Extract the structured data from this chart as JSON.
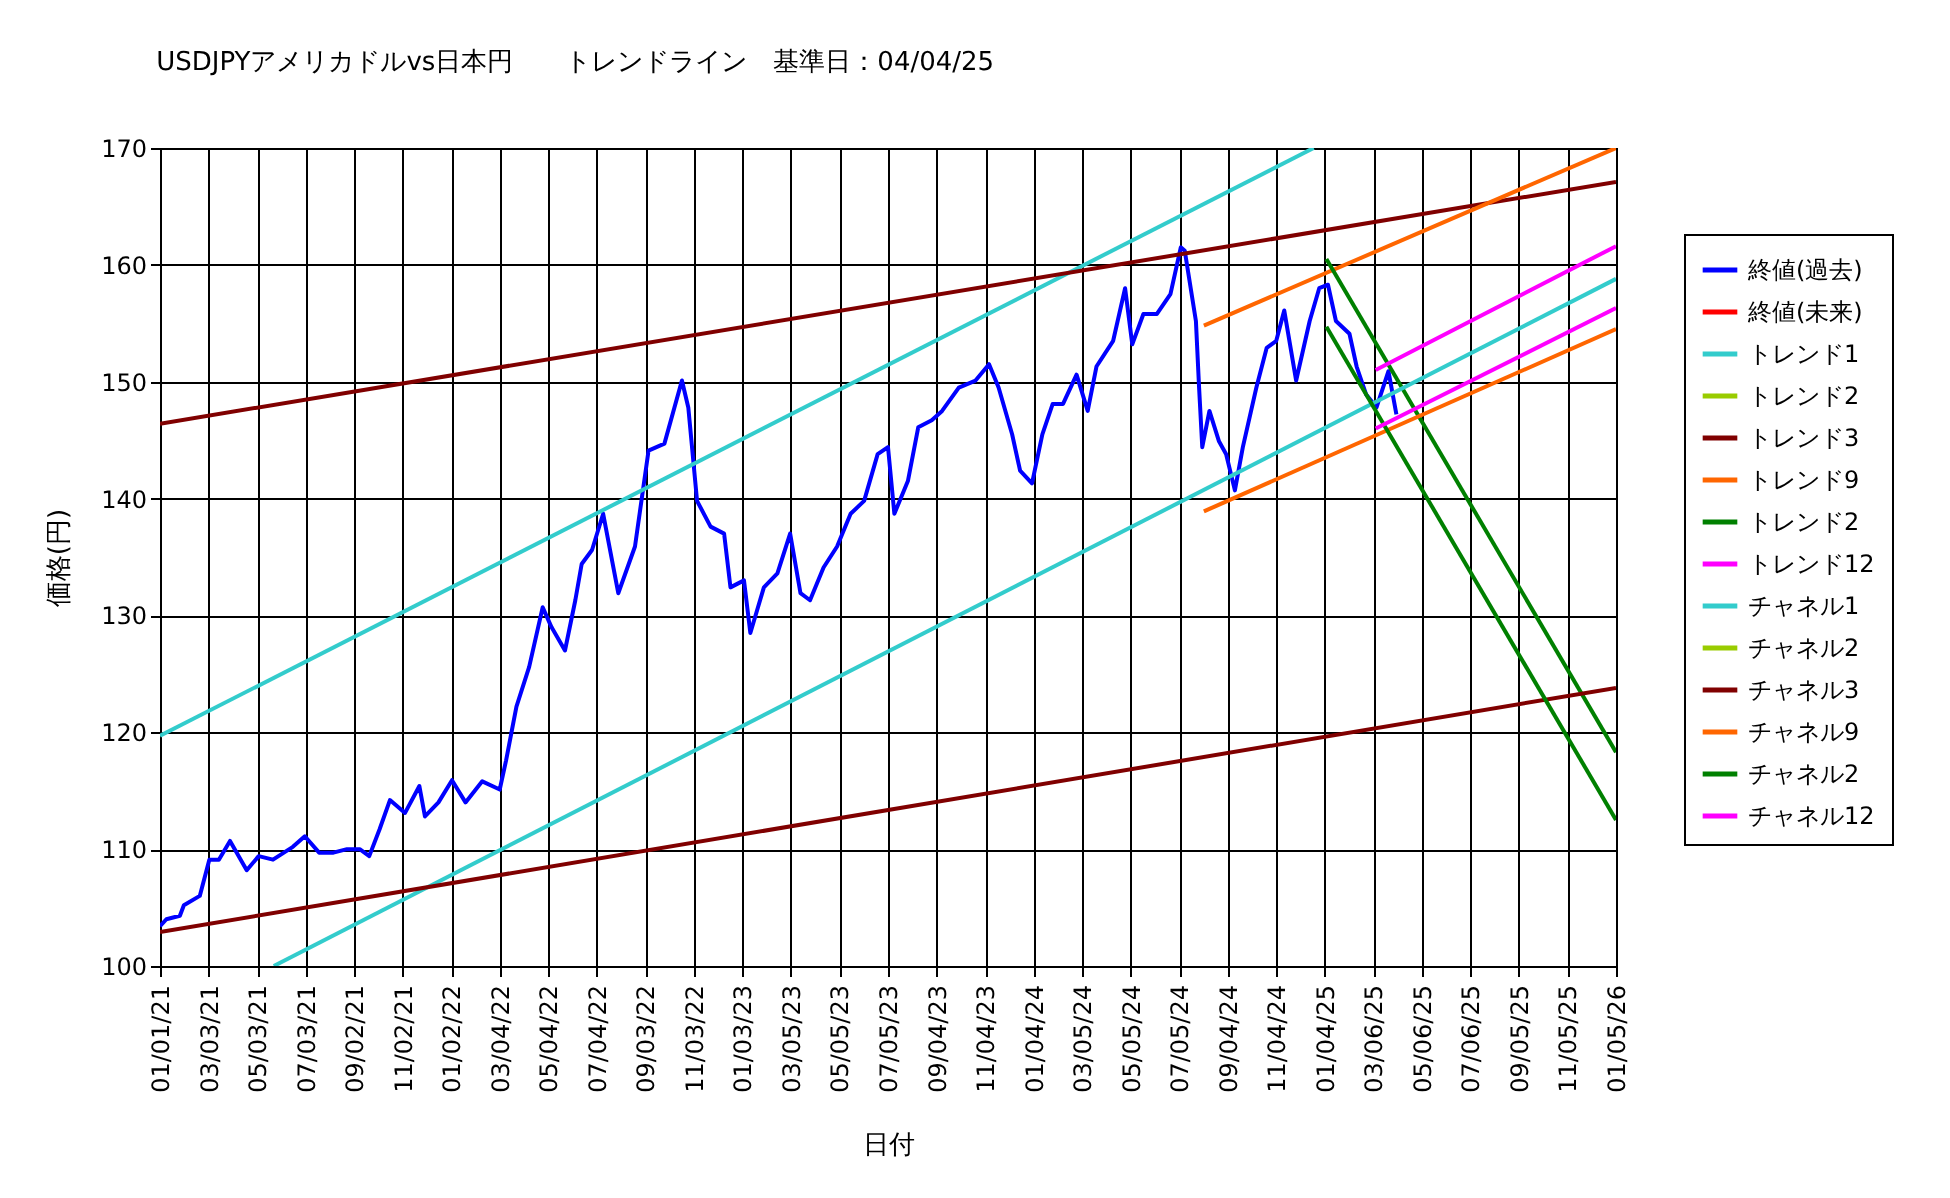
{
  "chart_data": {
    "type": "line",
    "title": "USDJPYアメリカドルvs日本円　　トレンドライン　基準日：04/04/25",
    "xlabel": "日付",
    "ylabel": "価格(円)",
    "xlim": [
      "2021-01-01",
      "2026-01-05"
    ],
    "ylim": [
      100,
      170
    ],
    "yticks": [
      100,
      110,
      120,
      130,
      140,
      150,
      160,
      170
    ],
    "xticks": [
      {
        "value": "2021-01-01",
        "label": "01/01/21"
      },
      {
        "value": "2021-03-03",
        "label": "03/03/21"
      },
      {
        "value": "2021-05-03",
        "label": "05/03/21"
      },
      {
        "value": "2021-07-03",
        "label": "07/03/21"
      },
      {
        "value": "2021-09-02",
        "label": "09/02/21"
      },
      {
        "value": "2021-11-02",
        "label": "11/02/21"
      },
      {
        "value": "2022-01-02",
        "label": "01/02/22"
      },
      {
        "value": "2022-03-04",
        "label": "03/04/22"
      },
      {
        "value": "2022-05-04",
        "label": "05/04/22"
      },
      {
        "value": "2022-07-04",
        "label": "07/04/22"
      },
      {
        "value": "2022-09-03",
        "label": "09/03/22"
      },
      {
        "value": "2022-11-03",
        "label": "11/03/22"
      },
      {
        "value": "2023-01-03",
        "label": "01/03/23"
      },
      {
        "value": "2023-03-05",
        "label": "03/05/23"
      },
      {
        "value": "2023-05-05",
        "label": "05/05/23"
      },
      {
        "value": "2023-07-05",
        "label": "07/05/23"
      },
      {
        "value": "2023-09-04",
        "label": "09/04/23"
      },
      {
        "value": "2023-11-04",
        "label": "11/04/23"
      },
      {
        "value": "2024-01-04",
        "label": "01/04/24"
      },
      {
        "value": "2024-03-05",
        "label": "03/05/24"
      },
      {
        "value": "2024-05-05",
        "label": "05/05/24"
      },
      {
        "value": "2024-07-05",
        "label": "07/05/24"
      },
      {
        "value": "2024-09-04",
        "label": "09/04/24"
      },
      {
        "value": "2024-11-04",
        "label": "11/04/24"
      },
      {
        "value": "2025-01-04",
        "label": "01/04/25"
      },
      {
        "value": "2025-03-06",
        "label": "03/06/25"
      },
      {
        "value": "2025-05-06",
        "label": "05/06/25"
      },
      {
        "value": "2025-07-06",
        "label": "07/06/25"
      },
      {
        "value": "2025-09-05",
        "label": "09/05/25"
      },
      {
        "value": "2025-11-05",
        "label": "11/05/25"
      },
      {
        "value": "2026-01-05",
        "label": "01/05/26"
      }
    ],
    "grid": true,
    "legend": "right",
    "series": [
      {
        "name": "終値(過去)",
        "color": "#0000ff",
        "x": [
          "2021-01-01",
          "2021-01-09",
          "2021-01-26",
          "2021-01-31",
          "2021-02-20",
          "2021-03-04",
          "2021-03-16",
          "2021-03-30",
          "2021-04-20",
          "2021-05-05",
          "2021-05-23",
          "2021-06-17",
          "2021-07-02",
          "2021-07-20",
          "2021-08-07",
          "2021-08-24",
          "2021-09-09",
          "2021-09-21",
          "2021-10-04",
          "2021-10-17",
          "2021-11-05",
          "2021-11-23",
          "2021-11-30",
          "2021-12-17",
          "2022-01-03",
          "2022-01-20",
          "2022-02-10",
          "2022-03-04",
          "2022-03-12",
          "2022-03-25",
          "2022-04-10",
          "2022-04-27",
          "2022-05-08",
          "2022-05-25",
          "2022-06-07",
          "2022-06-15",
          "2022-06-28",
          "2022-07-12",
          "2022-07-31",
          "2022-08-21",
          "2022-09-07",
          "2022-09-27",
          "2022-10-19",
          "2022-10-27",
          "2022-11-07",
          "2022-11-24",
          "2022-12-11",
          "2022-12-19",
          "2023-01-05",
          "2023-01-13",
          "2023-01-30",
          "2023-02-16",
          "2023-03-04",
          "2023-03-17",
          "2023-03-29",
          "2023-04-15",
          "2023-05-02",
          "2023-05-19",
          "2023-06-05",
          "2023-06-22",
          "2023-07-05",
          "2023-07-13",
          "2023-07-30",
          "2023-08-12",
          "2023-08-29",
          "2023-09-11",
          "2023-10-02",
          "2023-10-23",
          "2023-11-09",
          "2023-11-21",
          "2023-12-08",
          "2023-12-18",
          "2024-01-02",
          "2024-01-15",
          "2024-01-28",
          "2024-02-10",
          "2024-02-27",
          "2024-03-12",
          "2024-03-23",
          "2024-04-13",
          "2024-04-28",
          "2024-05-07",
          "2024-05-21",
          "2024-06-07",
          "2024-06-24",
          "2024-07-07",
          "2024-07-12",
          "2024-07-26",
          "2024-07-30",
          "2024-08-03",
          "2024-08-12",
          "2024-08-24",
          "2024-09-02",
          "2024-09-13",
          "2024-09-23",
          "2024-10-10",
          "2024-10-23",
          "2024-11-04",
          "2024-11-14",
          "2024-11-29",
          "2024-12-16",
          "2024-12-28",
          "2025-01-08",
          "2025-01-18",
          "2025-02-04",
          "2025-02-13",
          "2025-02-25",
          "2025-03-10",
          "2025-03-25",
          "2025-04-04"
        ],
        "values": [
          103.4,
          104.0,
          104.3,
          105.2,
          106.0,
          109.1,
          109.1,
          110.7,
          108.2,
          109.4,
          109.1,
          110.2,
          111.1,
          109.7,
          109.7,
          110.0,
          110.0,
          109.4,
          111.7,
          114.2,
          113.1,
          115.4,
          112.8,
          114.0,
          115.9,
          114.0,
          115.8,
          115.1,
          117.6,
          122.2,
          125.6,
          130.7,
          129.0,
          127.0,
          131.3,
          134.4,
          135.6,
          138.7,
          131.9,
          135.9,
          144.1,
          144.7,
          150.1,
          147.8,
          139.8,
          137.6,
          137.0,
          132.4,
          133.0,
          128.5,
          132.4,
          133.6,
          137.0,
          131.9,
          131.3,
          134.1,
          135.9,
          138.7,
          139.8,
          143.8,
          144.4,
          138.7,
          141.5,
          146.1,
          146.7,
          147.5,
          149.5,
          150.1,
          151.5,
          149.5,
          145.5,
          142.4,
          141.3,
          145.5,
          148.1,
          148.1,
          150.6,
          147.5,
          151.3,
          153.5,
          158.0,
          153.2,
          155.8,
          155.8,
          157.5,
          161.5,
          161.2,
          155.2,
          149.5,
          144.4,
          147.5,
          144.9,
          143.8,
          140.7,
          144.4,
          149.5,
          152.9,
          153.5,
          156.1,
          150.1,
          155.2,
          158.0,
          158.3,
          155.2,
          154.1,
          151.3,
          148.9,
          147.8,
          150.9,
          147.2
        ]
      },
      {
        "name": "終値(未来)",
        "color": "#ff0000"
      },
      {
        "name": "トレンド1",
        "color": "#33cccc",
        "x": [
          "2021-01-01",
          "2024-12-21"
        ],
        "values": [
          119.7,
          170
        ]
      },
      {
        "name": "トレンド2",
        "color": "#99cc00"
      },
      {
        "name": "トレンド3",
        "color": "#800000",
        "x": [
          "2021-01-01",
          "2026-01-05"
        ],
        "values": [
          146.4,
          167.1
        ]
      },
      {
        "name": "トレンド9",
        "color": "#ff6600",
        "x": [
          "2024-08-05",
          "2026-01-05"
        ],
        "values": [
          154.8,
          170
        ]
      },
      {
        "name": "トレンド2",
        "color": "#008000",
        "x": [
          "2025-01-06",
          "2026-01-05"
        ],
        "values": [
          160.5,
          118.3
        ]
      },
      {
        "name": "トレンド12",
        "color": "#ff00ff",
        "x": [
          "2025-03-09",
          "2026-01-05"
        ],
        "values": [
          151.0,
          161.6
        ]
      },
      {
        "name": "チャネル1",
        "color": "#33cccc",
        "x": [
          "2021-05-24",
          "2026-01-05"
        ],
        "values": [
          100,
          158.8
        ]
      },
      {
        "name": "チャネル2",
        "color": "#99cc00"
      },
      {
        "name": "チャネル3",
        "color": "#800000",
        "x": [
          "2021-01-01",
          "2026-01-05"
        ],
        "values": [
          102.9,
          123.8
        ]
      },
      {
        "name": "チャネル9",
        "color": "#ff6600",
        "x": [
          "2024-08-05",
          "2026-01-05"
        ],
        "values": [
          138.9,
          154.5
        ]
      },
      {
        "name": "チャネル2",
        "color": "#008000",
        "x": [
          "2025-01-06",
          "2026-01-05"
        ],
        "values": [
          154.7,
          112.5
        ]
      },
      {
        "name": "チャネル12",
        "color": "#ff00ff",
        "x": [
          "2025-03-09",
          "2026-01-05"
        ],
        "values": [
          146.0,
          156.3
        ]
      }
    ]
  }
}
